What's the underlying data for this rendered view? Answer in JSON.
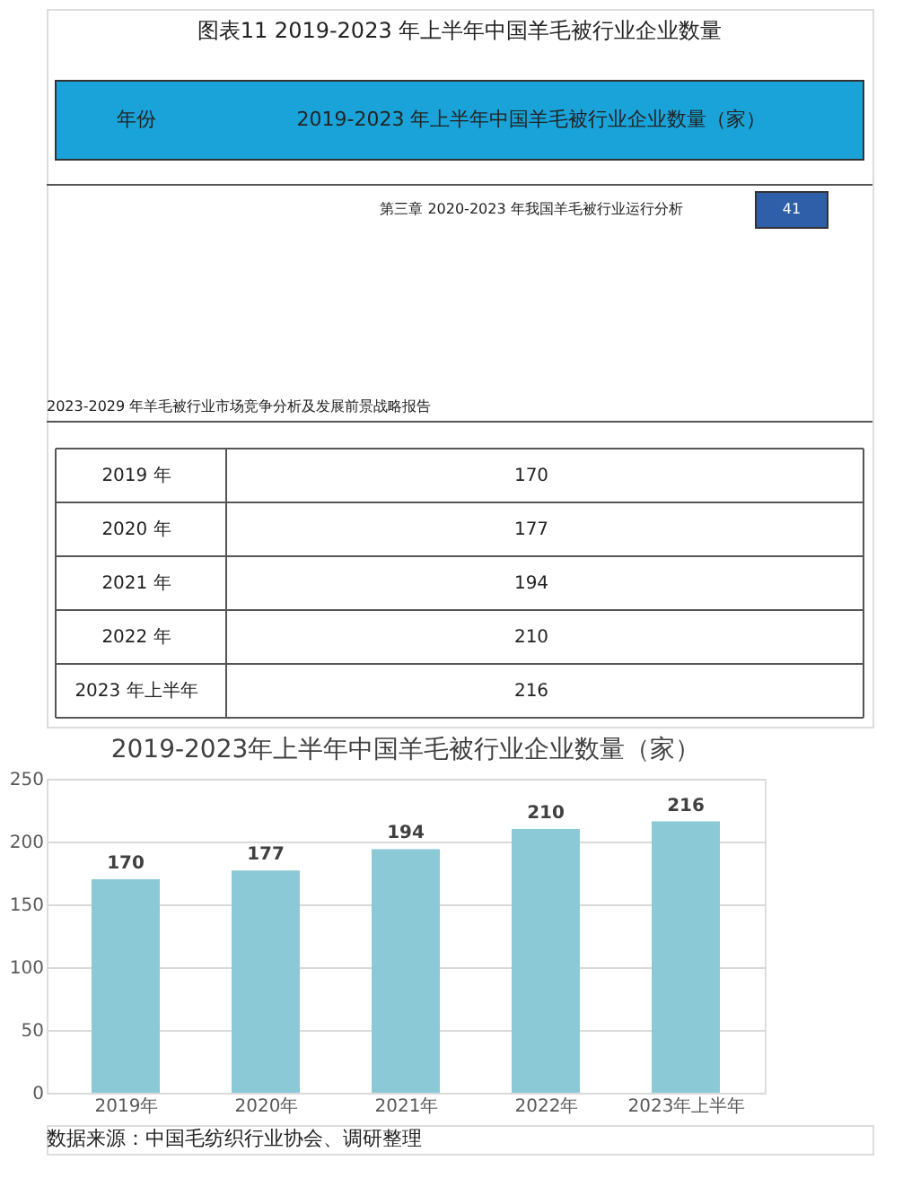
{
  "chart_data": {
    "type": "bar",
    "title": "2019-2023年上半年中国羊毛被行业企业数量（家）",
    "categories": [
      "2019年",
      "2020年",
      "2021年",
      "2022年",
      "2023年上半年"
    ],
    "values": [
      170,
      177,
      194,
      210,
      216
    ],
    "color": "#8cc9d6",
    "ylim": [
      0,
      250
    ],
    "yticks": [
      0,
      50,
      100,
      150,
      200,
      250
    ],
    "grid": "y",
    "data_labels": true,
    "annotations": [
      "图表11 2019-2023 年上半年中国羊毛被行业企业数量",
      "年份",
      "2019-2023 年上半年中国羊毛被行业企业数量（家）",
      "第三章 2020-2023 年我国羊毛被行业运行分析",
      "41",
      "2023-2029 年羊毛被行业市场竞争分析及发展前景战略报告",
      "2019 年",
      "2020 年",
      "2021 年",
      "2022 年",
      "2023 年上半年",
      "170",
      "177",
      "194",
      "210",
      "216",
      "数据来源：中国毛纺织行业协会、调研整理"
    ]
  }
}
